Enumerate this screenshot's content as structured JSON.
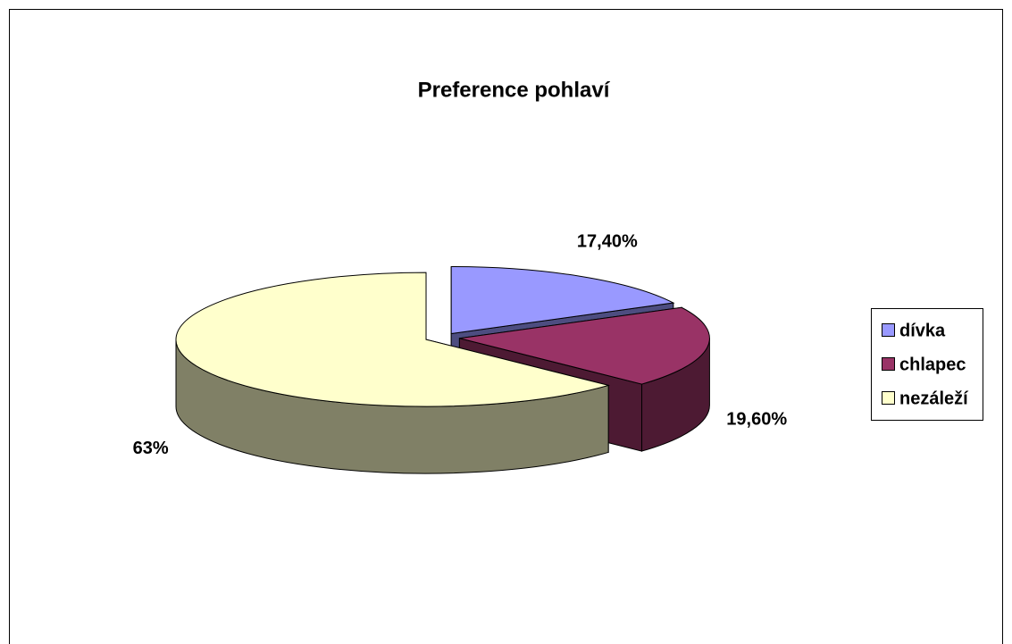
{
  "chart_data": {
    "type": "pie",
    "title": "Preference pohlaví",
    "categories": [
      "dívka",
      "chlapec",
      "nezáleží"
    ],
    "values": [
      17.4,
      19.6,
      63
    ],
    "value_labels": [
      "17,40%",
      "19,60%",
      "63%"
    ],
    "colors": [
      "#9999ff",
      "#993366",
      "#ffffcc"
    ],
    "legend": "right"
  }
}
